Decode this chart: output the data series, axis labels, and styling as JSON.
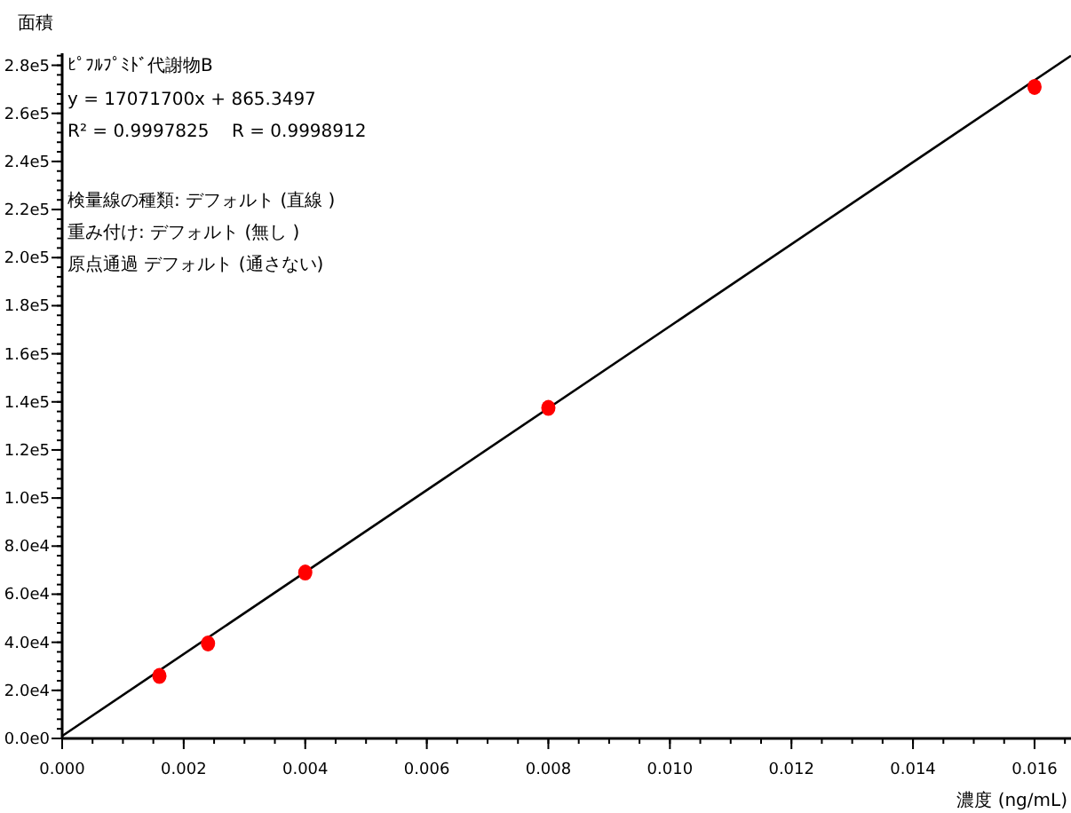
{
  "chart_data": {
    "type": "scatter",
    "title": "ﾋﾟﾌﾙﾌﾟﾐﾄﾞ代謝物B",
    "xlabel": "濃度 (ng/mL)",
    "ylabel": "面積",
    "annotations": [
      "y = 17071700x + 865.3497",
      "R² = 0.9997825    R = 0.9998912",
      "検量線の種類: デフォルト (直線 )",
      "重み付け: デフォルト (無し )",
      "原点通過 デフォルト (通さない)"
    ],
    "xlim": [
      0,
      0.0166
    ],
    "ylim": [
      0,
      285000
    ],
    "xticks": [
      {
        "value": 0,
        "label": "0.000"
      },
      {
        "value": 0.002,
        "label": "0.002"
      },
      {
        "value": 0.004,
        "label": "0.004"
      },
      {
        "value": 0.006,
        "label": "0.006"
      },
      {
        "value": 0.008,
        "label": "0.008"
      },
      {
        "value": 0.01,
        "label": "0.010"
      },
      {
        "value": 0.012,
        "label": "0.012"
      },
      {
        "value": 0.014,
        "label": "0.014"
      },
      {
        "value": 0.016,
        "label": "0.016"
      }
    ],
    "yticks": [
      {
        "value": 0,
        "label": "0.0e0"
      },
      {
        "value": 20000,
        "label": "2.0e4"
      },
      {
        "value": 40000,
        "label": "4.0e4"
      },
      {
        "value": 60000,
        "label": "6.0e4"
      },
      {
        "value": 80000,
        "label": "8.0e4"
      },
      {
        "value": 100000,
        "label": "1.0e5"
      },
      {
        "value": 120000,
        "label": "1.2e5"
      },
      {
        "value": 140000,
        "label": "1.4e5"
      },
      {
        "value": 160000,
        "label": "1.6e5"
      },
      {
        "value": 180000,
        "label": "1.8e5"
      },
      {
        "value": 200000,
        "label": "2.0e5"
      },
      {
        "value": 220000,
        "label": "2.2e5"
      },
      {
        "value": 240000,
        "label": "2.4e5"
      },
      {
        "value": 260000,
        "label": "2.6e5"
      },
      {
        "value": 280000,
        "label": "2.8e5"
      }
    ],
    "grid": false,
    "series": [
      {
        "type": "line",
        "color": "#000000",
        "x": [
          0,
          0.0166
        ],
        "values": [
          1000,
          284000
        ],
        "marker": "none"
      },
      {
        "color": "#ff0000",
        "x": [
          0.0016,
          0.0024,
          0.004,
          0.008,
          0.016
        ],
        "values": [
          26000,
          39500,
          69000,
          137500,
          271000
        ],
        "marker": "circle"
      }
    ]
  }
}
